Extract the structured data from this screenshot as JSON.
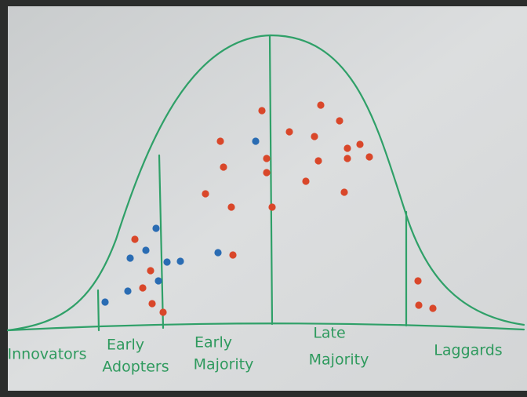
{
  "segments": [
    {
      "lines": [
        "Innovators"
      ]
    },
    {
      "lines": [
        "Early",
        "Adopters"
      ]
    },
    {
      "lines": [
        "Early",
        "Majority"
      ]
    },
    {
      "lines": [
        "Late",
        "Majority"
      ]
    },
    {
      "lines": [
        "Laggards"
      ]
    }
  ]
}
